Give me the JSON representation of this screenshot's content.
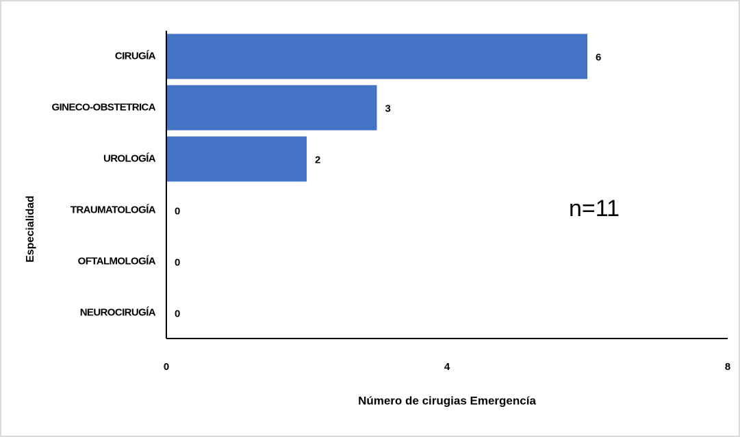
{
  "chart_data": {
    "type": "bar",
    "orientation": "horizontal",
    "xlabel": "Número de cirugias Emergencía",
    "ylabel": "Especialidad",
    "annotation": "n=11",
    "categories": [
      "CIRUGÍA",
      "GINECO-OBSTETRICA",
      "UROLOGÍA",
      "TRAUMATOLOGÍA",
      "OFTALMOLOGÍA",
      "NEUROCIRUGÍA"
    ],
    "values": [
      6,
      3,
      2,
      0,
      0,
      0
    ],
    "color": "#4472c4",
    "xlim": [
      0,
      8
    ],
    "xticks": [
      0,
      4,
      8
    ],
    "grid": false
  }
}
